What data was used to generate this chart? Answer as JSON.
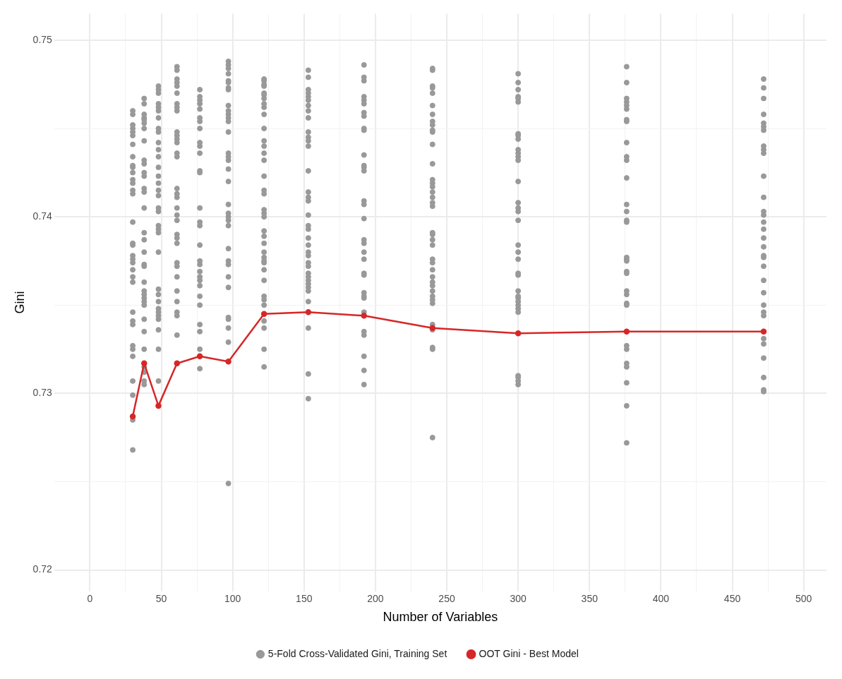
{
  "chart_data": {
    "type": "scatter",
    "xlabel": "Number of Variables",
    "ylabel": "Gini",
    "xlim": [
      -25,
      516
    ],
    "ylim": [
      0.7188,
      0.7515
    ],
    "xticks": [
      0,
      {
        "value": 25,
        "label": null
      },
      50,
      {
        "value": 75,
        "label": null
      },
      100,
      {
        "value": 125,
        "label": null
      },
      150,
      {
        "value": 175,
        "label": null
      },
      200,
      {
        "value": 225,
        "label": null
      },
      250,
      {
        "value": 275,
        "label": null
      },
      300,
      {
        "value": 325,
        "label": null
      },
      350,
      {
        "value": 375,
        "label": null
      },
      400,
      {
        "value": 425,
        "label": null
      },
      450,
      {
        "value": 475,
        "label": null
      },
      500
    ],
    "yticks": [
      0.72,
      {
        "value": 0.725,
        "label": null
      },
      0.73,
      {
        "value": 0.735,
        "label": null
      },
      0.74,
      {
        "value": 0.745,
        "label": null
      },
      0.75
    ],
    "grid": true,
    "legend": "bottom",
    "marker": "circle",
    "series": [
      {
        "name": "5-Fold Cross-Validated Gini, Training Set",
        "type": "scatter",
        "color": "#999999",
        "x": [
          30,
          30,
          30,
          30,
          30,
          30,
          30,
          30,
          30,
          30,
          30,
          30,
          30,
          30,
          30,
          30,
          30,
          30,
          30,
          30,
          30,
          30,
          30,
          30,
          30,
          30,
          30,
          30,
          30,
          30,
          30,
          30,
          30,
          30,
          38,
          38,
          38,
          38,
          38,
          38,
          38,
          38,
          38,
          38,
          38,
          38,
          38,
          38,
          38,
          38,
          38,
          38,
          38,
          38,
          38,
          38,
          38,
          38,
          38,
          38,
          38,
          38,
          38,
          38,
          38,
          38,
          38,
          48,
          48,
          48,
          48,
          48,
          48,
          48,
          48,
          48,
          48,
          48,
          48,
          48,
          48,
          48,
          48,
          48,
          48,
          48,
          48,
          48,
          48,
          48,
          48,
          48,
          48,
          48,
          48,
          48,
          48,
          48,
          48,
          48,
          61,
          61,
          61,
          61,
          61,
          61,
          61,
          61,
          61,
          61,
          61,
          61,
          61,
          61,
          61,
          61,
          61,
          61,
          61,
          61,
          61,
          61,
          61,
          61,
          61,
          61,
          61,
          61,
          61,
          61,
          61,
          61,
          77,
          77,
          77,
          77,
          77,
          77,
          77,
          77,
          77,
          77,
          77,
          77,
          77,
          77,
          77,
          77,
          77,
          77,
          77,
          77,
          77,
          77,
          77,
          77,
          77,
          77,
          77,
          77,
          77,
          97,
          97,
          97,
          97,
          97,
          97,
          97,
          97,
          97,
          97,
          97,
          97,
          97,
          97,
          97,
          97,
          97,
          97,
          97,
          97,
          97,
          97,
          97,
          97,
          97,
          97,
          97,
          97,
          97,
          97,
          97,
          97,
          97,
          97,
          122,
          122,
          122,
          122,
          122,
          122,
          122,
          122,
          122,
          122,
          122,
          122,
          122,
          122,
          122,
          122,
          122,
          122,
          122,
          122,
          122,
          122,
          122,
          122,
          122,
          122,
          122,
          122,
          122,
          122,
          122,
          122,
          122,
          122,
          122,
          122,
          122,
          153,
          153,
          153,
          153,
          153,
          153,
          153,
          153,
          153,
          153,
          153,
          153,
          153,
          153,
          153,
          153,
          153,
          153,
          153,
          153,
          153,
          153,
          153,
          153,
          153,
          153,
          153,
          153,
          153,
          153,
          153,
          153,
          153,
          153,
          153,
          153,
          192,
          192,
          192,
          192,
          192,
          192,
          192,
          192,
          192,
          192,
          192,
          192,
          192,
          192,
          192,
          192,
          192,
          192,
          192,
          192,
          192,
          192,
          192,
          192,
          192,
          192,
          192,
          192,
          192,
          192,
          192,
          192,
          240,
          240,
          240,
          240,
          240,
          240,
          240,
          240,
          240,
          240,
          240,
          240,
          240,
          240,
          240,
          240,
          240,
          240,
          240,
          240,
          240,
          240,
          240,
          240,
          240,
          240,
          240,
          240,
          240,
          240,
          240,
          240,
          240,
          240,
          240,
          240,
          240,
          240,
          240,
          300,
          300,
          300,
          300,
          300,
          300,
          300,
          300,
          300,
          300,
          300,
          300,
          300,
          300,
          300,
          300,
          300,
          300,
          300,
          300,
          300,
          300,
          300,
          300,
          300,
          300,
          300,
          300,
          300,
          300,
          300,
          300,
          300,
          300,
          376,
          376,
          376,
          376,
          376,
          376,
          376,
          376,
          376,
          376,
          376,
          376,
          376,
          376,
          376,
          376,
          376,
          376,
          376,
          376,
          376,
          376,
          376,
          376,
          376,
          376,
          376,
          376,
          376,
          376,
          376,
          376,
          472,
          472,
          472,
          472,
          472,
          472,
          472,
          472,
          472,
          472,
          472,
          472,
          472,
          472,
          472,
          472,
          472,
          472,
          472,
          472,
          472,
          472,
          472,
          472,
          472,
          472,
          472,
          472,
          472,
          472,
          472,
          472
        ],
        "values": [
          0.746,
          0.7458,
          0.7452,
          0.745,
          0.7448,
          0.7446,
          0.7441,
          0.7434,
          0.7429,
          0.7428,
          0.7425,
          0.7421,
          0.7419,
          0.7415,
          0.7413,
          0.7397,
          0.7385,
          0.7384,
          0.7378,
          0.7376,
          0.7374,
          0.737,
          0.7366,
          0.7363,
          0.7346,
          0.7341,
          0.7339,
          0.7327,
          0.7325,
          0.7321,
          0.7307,
          0.7299,
          0.7285,
          0.7268,
          0.7467,
          0.7464,
          0.7458,
          0.7456,
          0.7455,
          0.7453,
          0.745,
          0.7443,
          0.7432,
          0.743,
          0.7425,
          0.7423,
          0.7416,
          0.7414,
          0.7405,
          0.7391,
          0.7387,
          0.738,
          0.7373,
          0.7372,
          0.7363,
          0.7358,
          0.7356,
          0.7354,
          0.7352,
          0.735,
          0.7342,
          0.7335,
          0.7325,
          0.7315,
          0.7312,
          0.7307,
          0.7305,
          0.7474,
          0.7472,
          0.747,
          0.7464,
          0.7462,
          0.746,
          0.7456,
          0.745,
          0.7448,
          0.7442,
          0.7438,
          0.7434,
          0.7428,
          0.7423,
          0.7419,
          0.7415,
          0.7412,
          0.7405,
          0.7403,
          0.7395,
          0.7393,
          0.7391,
          0.738,
          0.7359,
          0.7356,
          0.7352,
          0.7348,
          0.7346,
          0.7344,
          0.7342,
          0.7336,
          0.7325,
          0.7307,
          0.7485,
          0.7483,
          0.7478,
          0.7476,
          0.7474,
          0.747,
          0.7464,
          0.7462,
          0.746,
          0.7448,
          0.7446,
          0.7444,
          0.7442,
          0.7436,
          0.7434,
          0.7416,
          0.7413,
          0.7411,
          0.7405,
          0.7401,
          0.7398,
          0.739,
          0.7388,
          0.7385,
          0.7374,
          0.7372,
          0.7366,
          0.7358,
          0.7352,
          0.7346,
          0.7344,
          0.7333,
          0.7472,
          0.7468,
          0.7466,
          0.7464,
          0.7461,
          0.7456,
          0.7454,
          0.745,
          0.7442,
          0.744,
          0.7436,
          0.7426,
          0.7425,
          0.7405,
          0.7397,
          0.7395,
          0.7384,
          0.7375,
          0.7373,
          0.7369,
          0.7366,
          0.7364,
          0.7361,
          0.7355,
          0.735,
          0.7339,
          0.7335,
          0.7325,
          0.7314,
          0.7488,
          0.7486,
          0.7484,
          0.7481,
          0.7477,
          0.7476,
          0.7473,
          0.7472,
          0.7463,
          0.746,
          0.7458,
          0.7456,
          0.7454,
          0.7448,
          0.7436,
          0.7434,
          0.7432,
          0.7427,
          0.742,
          0.7407,
          0.7402,
          0.74,
          0.7398,
          0.7395,
          0.7382,
          0.7375,
          0.7373,
          0.7366,
          0.736,
          0.7343,
          0.7342,
          0.7337,
          0.7329,
          0.7249,
          0.7478,
          0.7477,
          0.7475,
          0.7474,
          0.747,
          0.7469,
          0.7467,
          0.7464,
          0.7462,
          0.7458,
          0.745,
          0.7443,
          0.744,
          0.7436,
          0.7432,
          0.7423,
          0.7415,
          0.7413,
          0.7404,
          0.7402,
          0.74,
          0.7392,
          0.7389,
          0.7385,
          0.738,
          0.7377,
          0.7375,
          0.7374,
          0.737,
          0.7364,
          0.7355,
          0.7353,
          0.735,
          0.7341,
          0.7337,
          0.7325,
          0.7315,
          0.7483,
          0.7479,
          0.7472,
          0.747,
          0.7468,
          0.7466,
          0.7463,
          0.746,
          0.7456,
          0.7448,
          0.7445,
          0.7443,
          0.744,
          0.7426,
          0.7414,
          0.7411,
          0.7409,
          0.7401,
          0.7395,
          0.7393,
          0.7388,
          0.7384,
          0.738,
          0.7378,
          0.7374,
          0.7372,
          0.7368,
          0.7366,
          0.7364,
          0.7362,
          0.736,
          0.7358,
          0.7352,
          0.7337,
          0.7311,
          0.7297,
          0.7486,
          0.7479,
          0.7477,
          0.7468,
          0.7466,
          0.7464,
          0.7459,
          0.7457,
          0.745,
          0.7449,
          0.7435,
          0.7429,
          0.7428,
          0.7426,
          0.7409,
          0.7407,
          0.7399,
          0.7387,
          0.7385,
          0.738,
          0.7376,
          0.7368,
          0.7367,
          0.7357,
          0.7355,
          0.7354,
          0.7346,
          0.7335,
          0.7333,
          0.7321,
          0.7313,
          0.7305,
          0.7484,
          0.7483,
          0.7474,
          0.7473,
          0.747,
          0.7463,
          0.7458,
          0.7454,
          0.7452,
          0.7449,
          0.7448,
          0.7441,
          0.743,
          0.7421,
          0.7419,
          0.7417,
          0.7414,
          0.7411,
          0.7408,
          0.7406,
          0.7391,
          0.739,
          0.7387,
          0.7384,
          0.7376,
          0.7374,
          0.737,
          0.7366,
          0.7363,
          0.7361,
          0.7358,
          0.7355,
          0.7353,
          0.7351,
          0.7339,
          0.7336,
          0.7326,
          0.7325,
          0.7275,
          0.7481,
          0.7476,
          0.7472,
          0.7468,
          0.7467,
          0.7465,
          0.7447,
          0.7446,
          0.7444,
          0.7438,
          0.7436,
          0.7434,
          0.7432,
          0.742,
          0.7408,
          0.7405,
          0.7403,
          0.7398,
          0.7384,
          0.738,
          0.7376,
          0.7368,
          0.7367,
          0.7358,
          0.7355,
          0.7354,
          0.7352,
          0.735,
          0.7348,
          0.7346,
          0.731,
          0.7309,
          0.7307,
          0.7305,
          0.7485,
          0.7476,
          0.7467,
          0.7465,
          0.7463,
          0.7461,
          0.7455,
          0.7454,
          0.7442,
          0.7434,
          0.7432,
          0.7422,
          0.7407,
          0.7403,
          0.7398,
          0.7397,
          0.7377,
          0.7376,
          0.7375,
          0.7369,
          0.7368,
          0.7358,
          0.7356,
          0.7351,
          0.735,
          0.7327,
          0.7325,
          0.7317,
          0.7315,
          0.7306,
          0.7293,
          0.7272,
          0.7478,
          0.7473,
          0.7467,
          0.7458,
          0.7453,
          0.7451,
          0.7449,
          0.744,
          0.7438,
          0.7436,
          0.7423,
          0.7411,
          0.7403,
          0.7401,
          0.7397,
          0.7393,
          0.7388,
          0.7383,
          0.7378,
          0.7377,
          0.7372,
          0.7364,
          0.7357,
          0.735,
          0.7346,
          0.7344,
          0.7331,
          0.7328,
          0.732,
          0.7309,
          0.7302,
          0.7301
        ]
      },
      {
        "name": "OOT Gini - Best Model",
        "type": "line",
        "color": "#d62728",
        "line_style": "solid",
        "x": [
          30,
          38,
          48,
          61,
          77,
          97,
          122,
          153,
          192,
          240,
          300,
          376,
          472
        ],
        "values": [
          0.7287,
          0.7317,
          0.7293,
          0.7317,
          0.7321,
          0.7318,
          0.7345,
          0.7346,
          0.7344,
          0.7337,
          0.7334,
          0.7335,
          0.7335
        ]
      }
    ]
  }
}
